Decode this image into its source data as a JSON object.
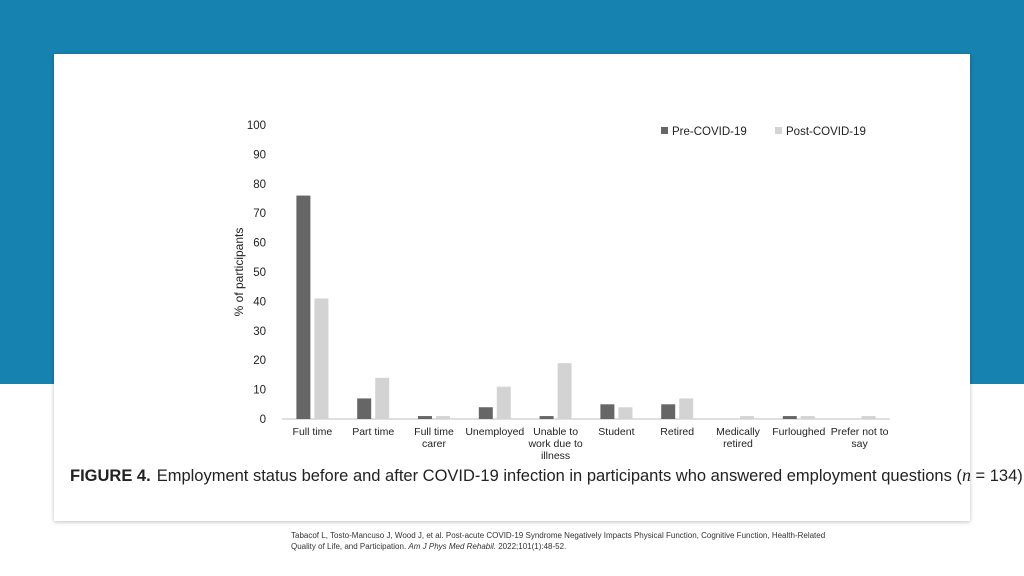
{
  "colors": {
    "background_band": "#1682b0",
    "card": "#ffffff",
    "pre": "#666666",
    "post": "#d3d3d3"
  },
  "caption": {
    "figure_label": "FIGURE 4.",
    "text": "Employment status before and after COVID-19 infection in participants who answered employment questions (",
    "n_symbol": "n",
    "n_value": " = 134)."
  },
  "citation": {
    "text": "Tabacof L, Tosto-Mancuso J, Wood J, et al. Post-acute COVID-19 Syndrome Negatively Impacts Physical Function, Cognitive Function, Health-Related Quality of Life, and Participation. ",
    "journal": "Am J Phys Med Rehabil.",
    "details": " 2022;101(1):48-52."
  },
  "chart_data": {
    "type": "bar",
    "title": "",
    "xlabel": "",
    "ylabel": "% of participants",
    "ylim": [
      0,
      100
    ],
    "yticks": [
      0,
      10,
      20,
      30,
      40,
      50,
      60,
      70,
      80,
      90,
      100
    ],
    "grid": false,
    "legend_position": "top-right",
    "categories": [
      [
        "Full time"
      ],
      [
        "Part time"
      ],
      [
        "Full time",
        "carer"
      ],
      [
        "Unemployed"
      ],
      [
        "Unable to",
        "work due to",
        "illness"
      ],
      [
        "Student"
      ],
      [
        "Retired"
      ],
      [
        "Medically",
        "retired"
      ],
      [
        "Furloughed"
      ],
      [
        "Prefer not to",
        "say"
      ]
    ],
    "series": [
      {
        "name": "Pre-COVID-19",
        "color": "#666666",
        "values": [
          76,
          7,
          1,
          4,
          1,
          5,
          5,
          0,
          1,
          0
        ]
      },
      {
        "name": "Post-COVID-19",
        "color": "#d3d3d3",
        "values": [
          41,
          14,
          1,
          11,
          19,
          4,
          7,
          1,
          1,
          1
        ]
      }
    ]
  }
}
